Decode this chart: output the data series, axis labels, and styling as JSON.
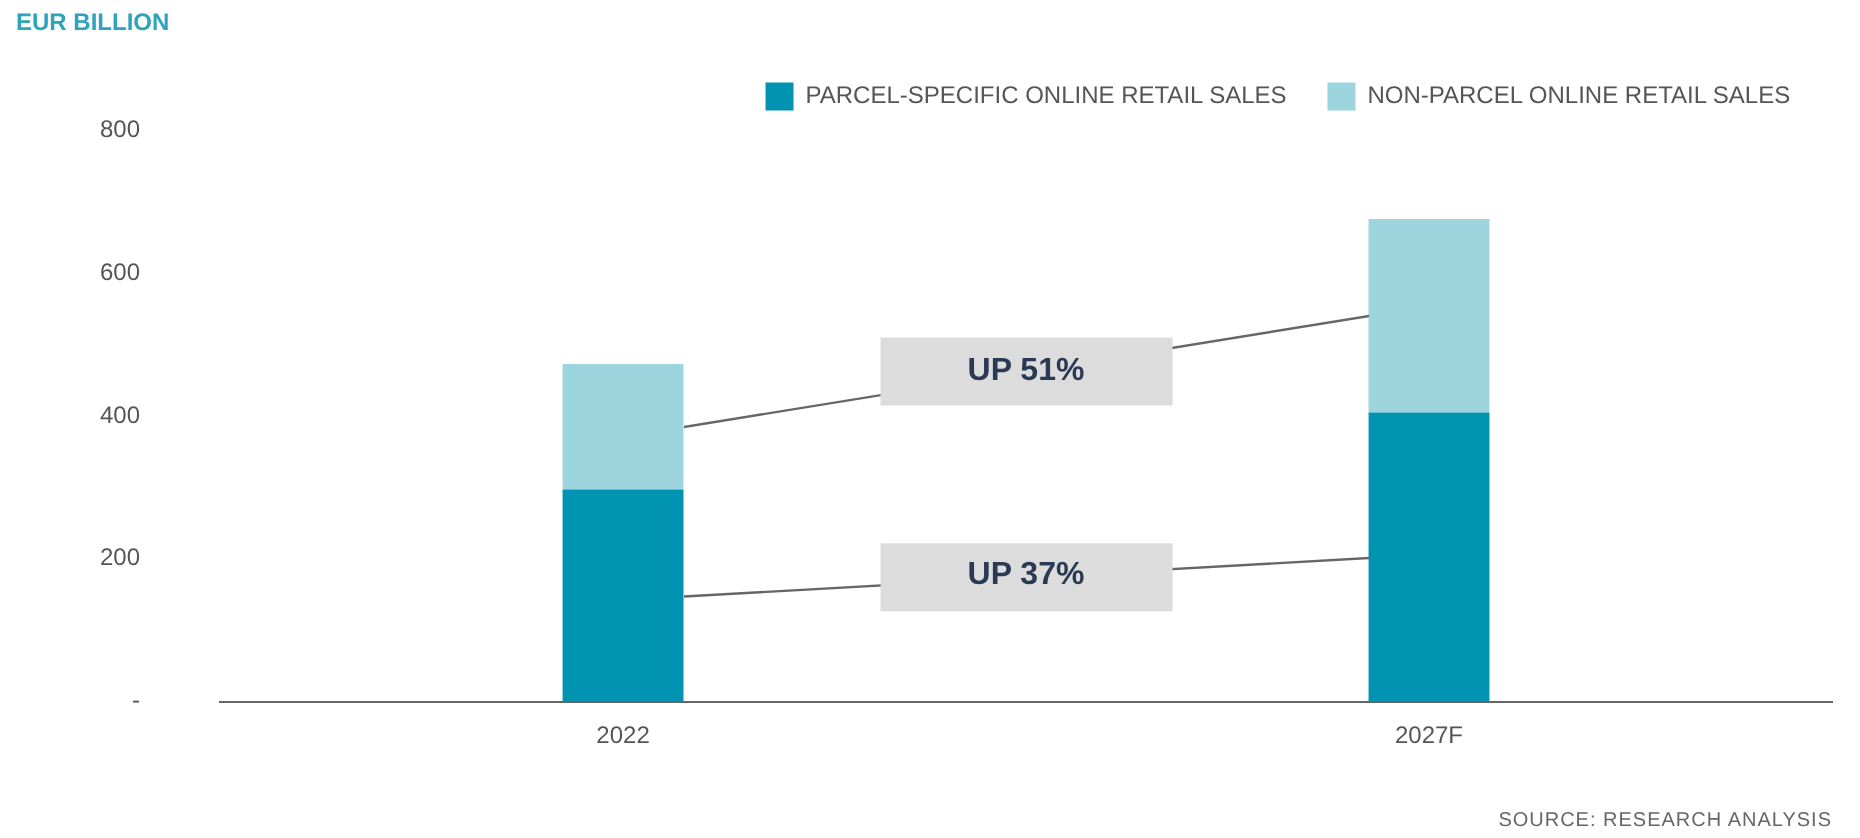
{
  "chart_data": {
    "type": "bar",
    "ylabel": "EUR BILLION",
    "categories": [
      "2022",
      "2027F"
    ],
    "stacked": true,
    "series": [
      {
        "name": "PARCEL-SPECIFIC ONLINE RETAIL SALES",
        "color": "#0093b2",
        "values": [
          297,
          405
        ]
      },
      {
        "name": "NON-PARCEL ONLINE RETAIL SALES",
        "color": "#9dd5df",
        "values": [
          176,
          271
        ]
      }
    ],
    "ylim": [
      0,
      800
    ],
    "yticks": [
      {
        "value": 0,
        "label": "-"
      },
      200,
      400,
      600,
      800
    ],
    "grid": false,
    "legend": "top right",
    "annotations": [
      "UP 51%",
      "UP 37%",
      "SOURCE: RESEARCH ANALYSIS"
    ]
  }
}
